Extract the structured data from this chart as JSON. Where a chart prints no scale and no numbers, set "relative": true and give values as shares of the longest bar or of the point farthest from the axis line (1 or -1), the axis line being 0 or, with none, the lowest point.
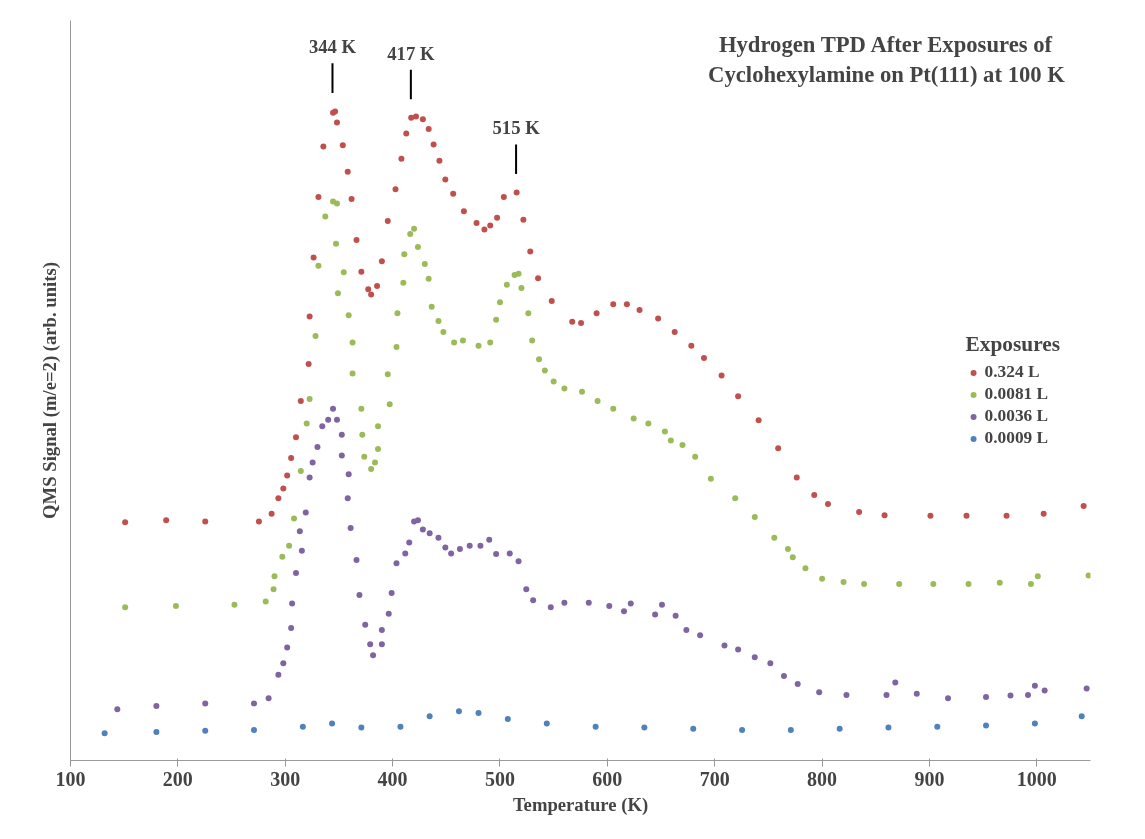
{
  "chart_data": {
    "type": "scatter",
    "title": "Hydrogen TPD After Exposures of\nCyclohexylamine on Pt(111) at 100 K",
    "xlabel": "Temperature (K)",
    "ylabel": "QMS Signal (m/e=2) (arb. units)",
    "legend_title": "Exposures",
    "relative": true,
    "xlim": [
      100,
      1050
    ],
    "xticks": [
      100,
      200,
      300,
      400,
      500,
      600,
      700,
      800,
      900,
      1000
    ],
    "grid": false,
    "legend": "right",
    "marker": "circle",
    "annotations": [
      {
        "text": "344 K",
        "x": 344,
        "y": 1.0
      },
      {
        "text": "417 K",
        "x": 417,
        "y": 0.99
      },
      {
        "text": "515 K",
        "x": 515,
        "y": 0.875
      }
    ],
    "series": [
      {
        "name": "0.324 L",
        "color": "#c0504d",
        "x": [
          150.9,
          189.1,
          225.5,
          275.5,
          287.3,
          293.6,
          298.2,
          301.8,
          305.5,
          310.0,
          314.5,
          321.8,
          322.7,
          326.4,
          330.9,
          335.5,
          344.5,
          346.4,
          348.2,
          353.6,
          358.2,
          361.8,
          366.4,
          370.9,
          377.3,
          380.0,
          385.5,
          390.0,
          395.5,
          402.7,
          408.2,
          412.7,
          417.3,
          421.8,
          428.2,
          433.6,
          438.2,
          443.6,
          449.1,
          456.4,
          466.4,
          478.2,
          485.5,
          490.9,
          497.3,
          503.6,
          515.5,
          521.8,
          528.2,
          535.5,
          548.2,
          567.3,
          575.5,
          590.0,
          605.5,
          618.2,
          630.0,
          647.3,
          662.7,
          678.2,
          690.0,
          706.4,
          721.8,
          740.9,
          759.1,
          776.4,
          792.7,
          805.5,
          834.5,
          858.2,
          900.9,
          934.5,
          971.8,
          1006.4,
          1043.6
        ],
        "values": [
          0.367,
          0.37,
          0.368,
          0.368,
          0.38,
          0.404,
          0.419,
          0.439,
          0.466,
          0.498,
          0.554,
          0.611,
          0.684,
          0.775,
          0.868,
          0.946,
          0.998,
          1.0,
          0.983,
          0.948,
          0.907,
          0.865,
          0.802,
          0.753,
          0.726,
          0.718,
          0.731,
          0.769,
          0.831,
          0.88,
          0.927,
          0.966,
          0.99,
          0.992,
          0.988,
          0.973,
          0.949,
          0.924,
          0.895,
          0.873,
          0.846,
          0.828,
          0.818,
          0.824,
          0.836,
          0.868,
          0.875,
          0.833,
          0.784,
          0.743,
          0.708,
          0.676,
          0.674,
          0.689,
          0.703,
          0.703,
          0.694,
          0.681,
          0.66,
          0.639,
          0.62,
          0.593,
          0.561,
          0.524,
          0.481,
          0.436,
          0.409,
          0.395,
          0.383,
          0.378,
          0.377,
          0.377,
          0.377,
          0.38,
          0.392
        ]
      },
      {
        "name": "0.0081 L",
        "color": "#9bbb59",
        "x": [
          150.9,
          198.2,
          252.7,
          281.8,
          289.1,
          290.0,
          297.3,
          303.6,
          308.2,
          314.5,
          320.0,
          322.7,
          328.2,
          330.9,
          337.3,
          344.5,
          348.2,
          347.3,
          349.1,
          354.5,
          359.1,
          362.7,
          362.7,
          370.9,
          371.8,
          373.6,
          380.0,
          383.6,
          386.4,
          386.4,
          397.3,
          395.5,
          403.6,
          404.5,
          410.0,
          410.9,
          416.4,
          420.0,
          423.6,
          430.0,
          433.6,
          436.4,
          442.7,
          447.3,
          457.3,
          465.5,
          480.0,
          490.9,
          496.4,
          500.0,
          506.4,
          513.6,
          517.3,
          520.0,
          526.4,
          530.0,
          536.4,
          541.8,
          550.0,
          560.0,
          576.4,
          590.9,
          605.5,
          624.5,
          638.2,
          653.6,
          659.1,
          670.0,
          681.8,
          696.4,
          719.1,
          737.3,
          755.5,
          768.2,
          772.7,
          784.5,
          800.0,
          820.0,
          839.1,
          871.8,
          903.6,
          936.4,
          965.5,
          994.5,
          1000.9,
          1048.2
        ],
        "values": [
          0.236,
          0.238,
          0.24,
          0.245,
          0.264,
          0.284,
          0.314,
          0.331,
          0.373,
          0.446,
          0.519,
          0.557,
          0.654,
          0.762,
          0.838,
          0.861,
          0.858,
          0.796,
          0.72,
          0.752,
          0.686,
          0.644,
          0.596,
          0.542,
          0.502,
          0.468,
          0.449,
          0.459,
          0.48,
          0.515,
          0.549,
          0.595,
          0.637,
          0.689,
          0.736,
          0.78,
          0.811,
          0.819,
          0.791,
          0.765,
          0.742,
          0.699,
          0.677,
          0.66,
          0.644,
          0.647,
          0.639,
          0.644,
          0.679,
          0.706,
          0.733,
          0.748,
          0.75,
          0.728,
          0.689,
          0.647,
          0.618,
          0.601,
          0.584,
          0.573,
          0.568,
          0.554,
          0.542,
          0.527,
          0.519,
          0.507,
          0.493,
          0.486,
          0.468,
          0.434,
          0.404,
          0.375,
          0.343,
          0.326,
          0.313,
          0.296,
          0.28,
          0.275,
          0.272,
          0.272,
          0.272,
          0.272,
          0.274,
          0.272,
          0.284,
          0.285
        ]
      },
      {
        "name": "0.0036 L",
        "color": "#8064a2",
        "x": [
          143.6,
          180.0,
          225.5,
          270.9,
          284.5,
          293.6,
          298.2,
          301.8,
          305.5,
          306.4,
          310.0,
          313.6,
          315.5,
          319.1,
          322.7,
          325.5,
          330.0,
          334.5,
          340.0,
          344.5,
          348.2,
          352.7,
          352.7,
          358.2,
          359.1,
          360.9,
          366.4,
          369.1,
          374.5,
          379.1,
          381.8,
          390.0,
          390.0,
          396.4,
          399.1,
          403.6,
          411.8,
          415.5,
          420.0,
          423.6,
          428.2,
          434.5,
          442.7,
          449.1,
          454.5,
          462.7,
          471.8,
          481.8,
          490.0,
          496.4,
          509.1,
          517.3,
          524.5,
          530.9,
          547.3,
          560.0,
          582.7,
          601.8,
          615.5,
          621.8,
          644.5,
          650.9,
          663.6,
          673.6,
          686.4,
          709.1,
          721.8,
          737.3,
          751.8,
          764.5,
          777.3,
          797.3,
          822.7,
          860.0,
          868.2,
          888.2,
          917.3,
          952.7,
          975.5,
          991.8,
          998.2,
          1007.3,
          1046.4
        ],
        "values": [
          0.079,
          0.084,
          0.088,
          0.088,
          0.096,
          0.132,
          0.15,
          0.174,
          0.204,
          0.242,
          0.289,
          0.353,
          0.323,
          0.382,
          0.436,
          0.459,
          0.483,
          0.515,
          0.525,
          0.542,
          0.525,
          0.502,
          0.47,
          0.404,
          0.441,
          0.358,
          0.309,
          0.255,
          0.209,
          0.179,
          0.162,
          0.179,
          0.201,
          0.226,
          0.258,
          0.304,
          0.319,
          0.336,
          0.368,
          0.37,
          0.356,
          0.35,
          0.343,
          0.328,
          0.319,
          0.326,
          0.331,
          0.331,
          0.34,
          0.318,
          0.319,
          0.307,
          0.264,
          0.247,
          0.236,
          0.243,
          0.243,
          0.238,
          0.23,
          0.242,
          0.225,
          0.24,
          0.223,
          0.201,
          0.193,
          0.177,
          0.171,
          0.159,
          0.15,
          0.13,
          0.118,
          0.105,
          0.101,
          0.101,
          0.12,
          0.103,
          0.096,
          0.098,
          0.1,
          0.101,
          0.115,
          0.108,
          0.111
        ]
      },
      {
        "name": "0.0009 L",
        "color": "#4f81bd",
        "x": [
          131.8,
          180.0,
          225.5,
          270.9,
          316.4,
          343.6,
          370.9,
          407.3,
          434.5,
          461.8,
          480.0,
          507.3,
          543.6,
          589.1,
          634.5,
          680.0,
          725.5,
          770.9,
          816.4,
          861.8,
          907.3,
          952.7,
          998.2,
          1041.8
        ],
        "values": [
          0.042,
          0.044,
          0.046,
          0.047,
          0.052,
          0.057,
          0.051,
          0.052,
          0.068,
          0.076,
          0.073,
          0.064,
          0.057,
          0.052,
          0.051,
          0.049,
          0.047,
          0.047,
          0.049,
          0.051,
          0.052,
          0.054,
          0.057,
          0.068
        ]
      }
    ]
  }
}
